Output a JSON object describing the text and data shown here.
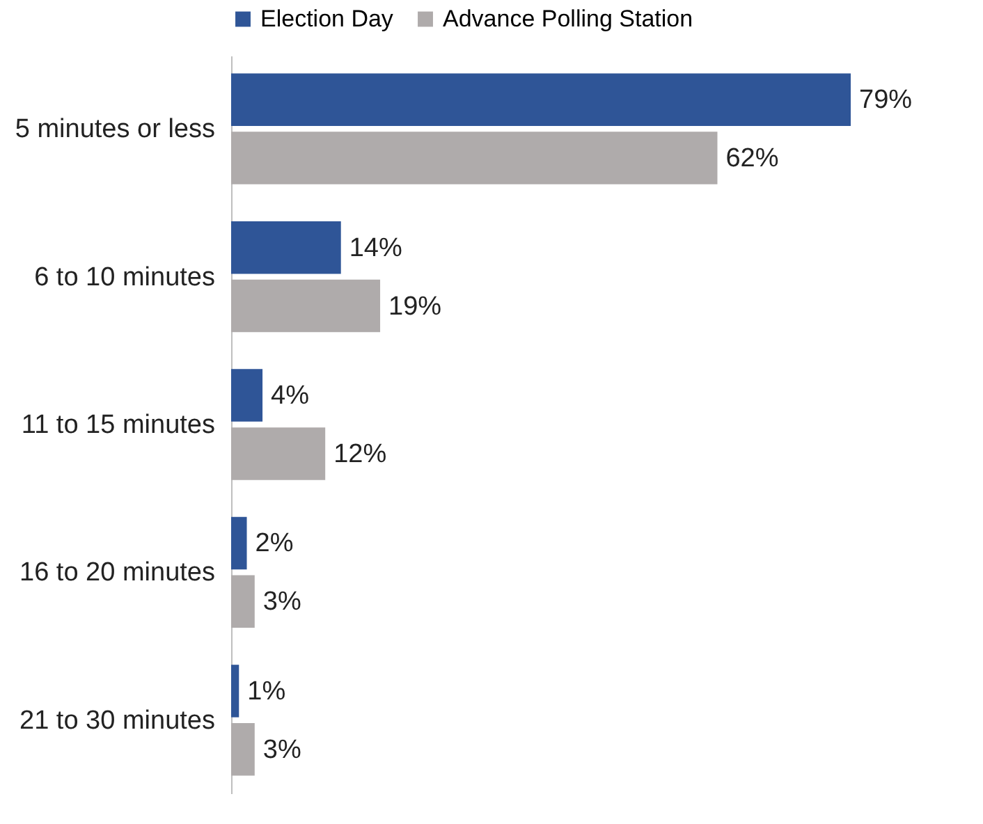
{
  "chart_data": {
    "type": "bar",
    "orientation": "horizontal",
    "legend": "top",
    "categories": [
      "5 minutes or less",
      "6 to 10 minutes",
      "11 to 15 minutes",
      "16 to 20 minutes",
      "21 to 30 minutes"
    ],
    "series": [
      {
        "name": "Election Day",
        "color": "#2f5597",
        "values": [
          79,
          14,
          4,
          2,
          1
        ],
        "value_labels": [
          "79%",
          "14%",
          "4%",
          "2%",
          "1%"
        ]
      },
      {
        "name": "Advance Polling Station",
        "color": "#afabab",
        "values": [
          62,
          19,
          12,
          3,
          3
        ],
        "value_labels": [
          "62%",
          "19%",
          "12%",
          "3%",
          "3%"
        ]
      }
    ]
  }
}
